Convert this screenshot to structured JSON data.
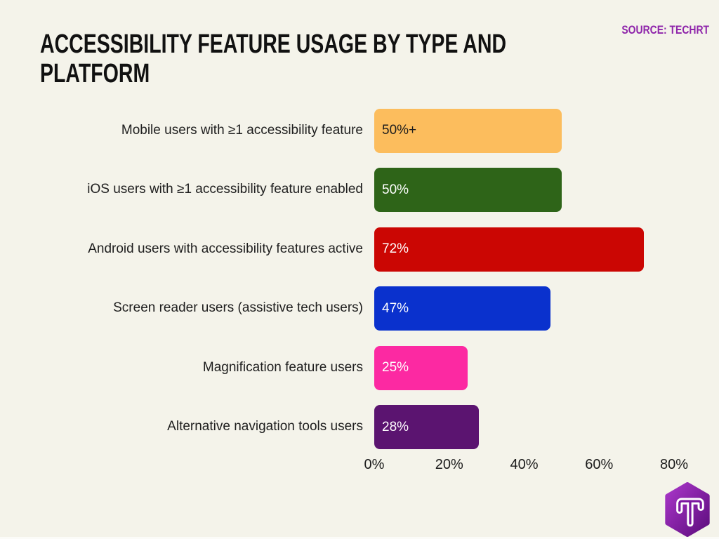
{
  "header": {
    "title_line1": "ACCESSIBILITY FEATURE USAGE BY TYPE AND",
    "title_line2": "PLATFORM",
    "source": "SOURCE: TECHRT",
    "source_color": "#8e24aa",
    "title_color": "#111111"
  },
  "chart_data": {
    "type": "bar",
    "orientation": "horizontal",
    "title": "Accessibility feature usage by type and platform",
    "categories": [
      "Mobile users with ≥1 accessibility feature",
      "iOS users with ≥1 accessibility feature enabled",
      "Android users with accessibility features active",
      "Screen reader users (assistive tech users)",
      "Magnification feature users",
      "Alternative navigation tools users"
    ],
    "values": [
      50,
      50,
      72,
      47,
      25,
      28
    ],
    "value_labels": [
      "50%+",
      "50%",
      "72%",
      "47%",
      "25%",
      "28%"
    ],
    "bar_colors": [
      "#fcbd5d",
      "#2e6418",
      "#cb0603",
      "#0a31cd",
      "#fc29a2",
      "#5b1470"
    ],
    "value_label_colors": [
      "#1d1d1d",
      "#ffffff",
      "#ffffff",
      "#ffffff",
      "#ffffff",
      "#ffffff"
    ],
    "xlabel": "",
    "ylabel": "",
    "xlim": [
      0,
      80
    ],
    "x_ticks": [
      "0%",
      "20%",
      "40%",
      "60%",
      "80%"
    ],
    "x_tick_values": [
      0,
      20,
      40,
      60,
      80
    ],
    "grid": false,
    "legend": "none"
  },
  "logo": {
    "name": "TechRT hexagon logo",
    "letter": "T",
    "gradient_top": "#a936c9",
    "gradient_bottom": "#5e0d7e",
    "inner_stroke": "#7c15a0"
  },
  "colors": {
    "background": "#f4f3ea",
    "axis_text": "#1b1b1b"
  }
}
